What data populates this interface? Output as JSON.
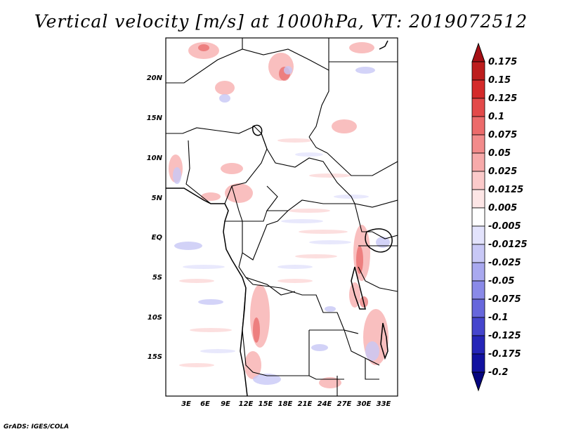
{
  "title": "Vertical velocity [m/s] at 1000hPa, VT: 2019072512",
  "credit": "GrADS: IGES/COLA",
  "map": {
    "lon_labels": [
      "3E",
      "6E",
      "9E",
      "12E",
      "15E",
      "18E",
      "21E",
      "24E",
      "27E",
      "30E",
      "33E"
    ],
    "lat_labels": [
      "20N",
      "15N",
      "10N",
      "5N",
      "EQ",
      "5S",
      "10S",
      "15S"
    ]
  },
  "colorbar": {
    "labels": [
      "0.175",
      "0.15",
      "0.125",
      "0.1",
      "0.075",
      "0.05",
      "0.025",
      "0.0125",
      "0.005",
      "-0.005",
      "-0.0125",
      "-0.025",
      "-0.05",
      "-0.075",
      "-0.1",
      "-0.125",
      "-0.175",
      "-0.2"
    ],
    "colors": [
      "#a50f15",
      "#bd1d1d",
      "#d42a2a",
      "#e34a4a",
      "#ec6b6b",
      "#f28b8b",
      "#f7aaaa",
      "#fbcaca",
      "#fde6e6",
      "#ffffff",
      "#e3e3fc",
      "#c8c8f6",
      "#a9a9ef",
      "#8a8ae8",
      "#6767dc",
      "#4545cd",
      "#2525b8",
      "#1212a0",
      "#05057f"
    ]
  }
}
